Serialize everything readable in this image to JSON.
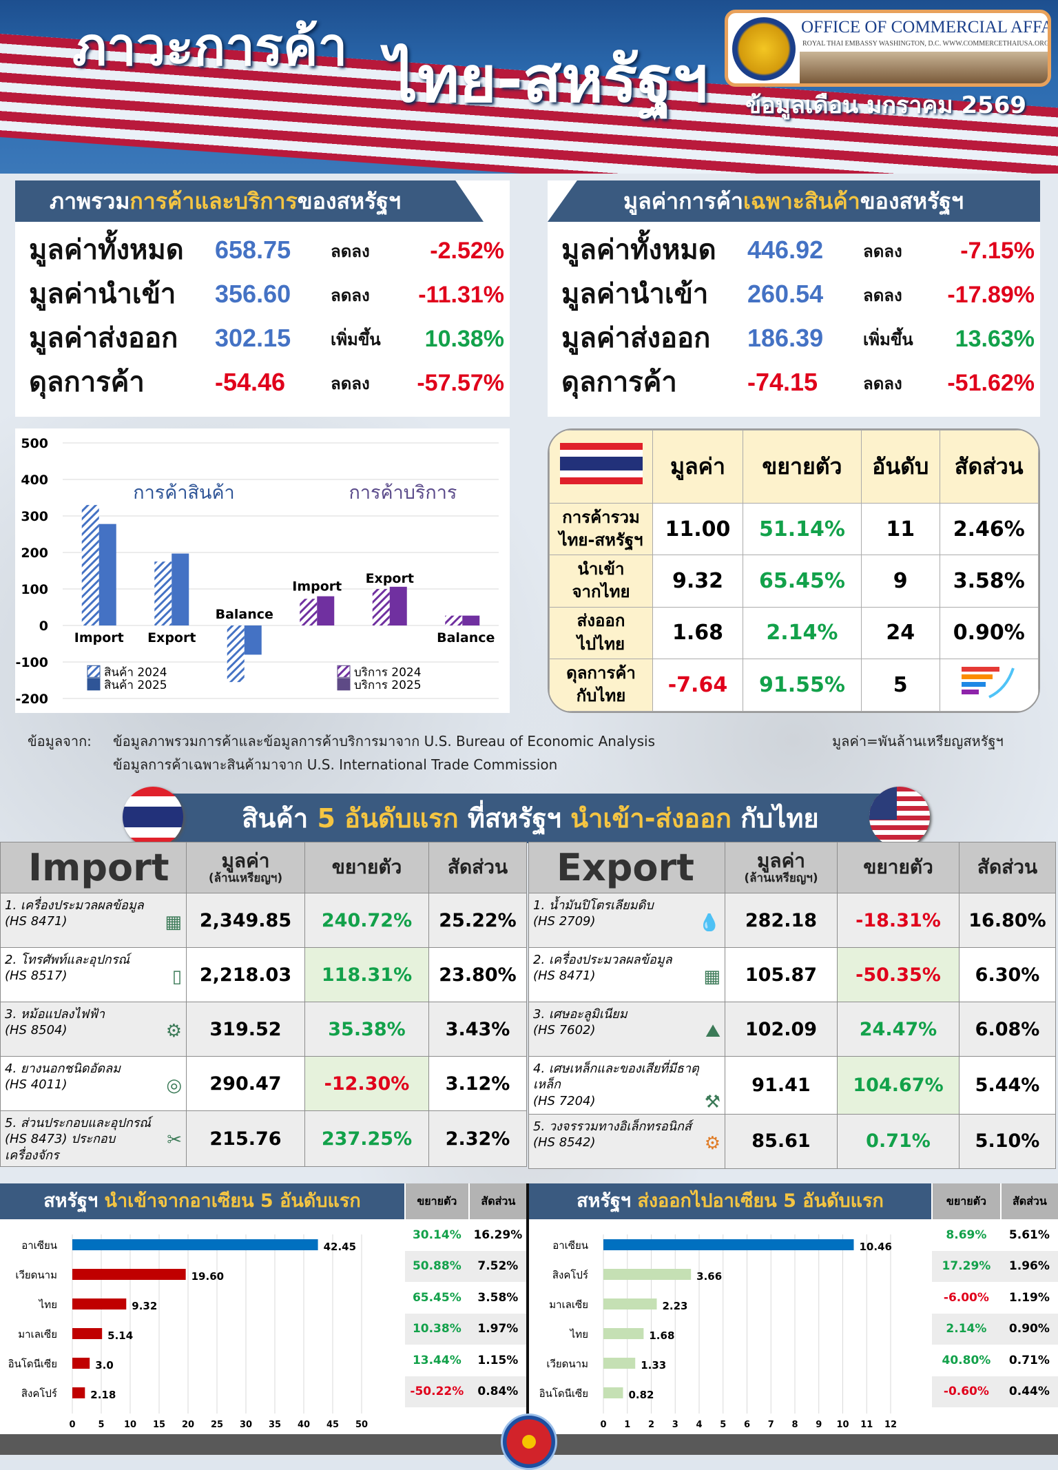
{
  "header": {
    "title_1": "ภาวะการค้า",
    "title_2": "ไทย-สหรัฐฯ",
    "logo_line_1": "OFFICE OF COMMERCIAL AFFAIRS",
    "logo_line_2": "ROYAL THAI EMBASSY WASHINGTON, D.C.   WWW.COMMERCETHAIUSA.ORG",
    "month": "ข้อมูลเดือน มกราคม 2569"
  },
  "overview": {
    "title_pre": "ภาพรวม",
    "title_hl": "การค้าและบริการ",
    "title_post": "ของสหรัฐฯ",
    "rows": [
      {
        "label": "มูลค่าทั้งหมด",
        "value": "658.75",
        "dir": "ลดลง",
        "pct": "-2.52%",
        "trend": "down"
      },
      {
        "label": "มูลค่านำเข้า",
        "value": "356.60",
        "dir": "ลดลง",
        "pct": "-11.31%",
        "trend": "down"
      },
      {
        "label": "มูลค่าส่งออก",
        "value": "302.15",
        "dir": "เพิ่มขึ้น",
        "pct": "10.38%",
        "trend": "up"
      },
      {
        "label": "ดุลการค้า",
        "value": "-54.46",
        "dir": "ลดลง",
        "pct": "-57.57%",
        "trend": "down"
      }
    ]
  },
  "goods": {
    "title_pre": "มูลค่าการค้า",
    "title_hl": "เฉพาะสินค้า",
    "title_post": "ของสหรัฐฯ",
    "rows": [
      {
        "label": "มูลค่าทั้งหมด",
        "value": "446.92",
        "dir": "ลดลง",
        "pct": "-7.15%",
        "trend": "down"
      },
      {
        "label": "มูลค่านำเข้า",
        "value": "260.54",
        "dir": "ลดลง",
        "pct": "-17.89%",
        "trend": "down"
      },
      {
        "label": "มูลค่าส่งออก",
        "value": "186.39",
        "dir": "เพิ่มขึ้น",
        "pct": "13.63%",
        "trend": "up"
      },
      {
        "label": "ดุลการค้า",
        "value": "-74.15",
        "dir": "ลดลง",
        "pct": "-51.62%",
        "trend": "down"
      }
    ]
  },
  "chart_data": [
    {
      "type": "bar",
      "ylim": [
        -200,
        500
      ],
      "yticks": [
        500,
        400,
        300,
        200,
        100,
        0,
        -100,
        -200
      ],
      "grid": true,
      "group_labels": [
        "การค้าสินค้า",
        "การค้าบริการ"
      ],
      "categories": [
        "Import",
        "Export",
        "Balance",
        "Import",
        "Export",
        "Balance"
      ],
      "series": [
        {
          "name": "สินค้า 2024",
          "group": 0,
          "values": [
            330,
            175,
            -155,
            null,
            null,
            null
          ],
          "color": "#4472c4",
          "pattern": "hatch"
        },
        {
          "name": "สินค้า 2025",
          "group": 0,
          "values": [
            278,
            197,
            -80,
            null,
            null,
            null
          ],
          "color": "#4472c4",
          "pattern": "solid"
        },
        {
          "name": "บริการ 2024",
          "group": 1,
          "values": [
            null,
            null,
            null,
            73,
            100,
            27
          ],
          "color": "#7030a0",
          "pattern": "hatch"
        },
        {
          "name": "บริการ 2025",
          "group": 1,
          "values": [
            null,
            null,
            null,
            80,
            106,
            27
          ],
          "color": "#7030a0",
          "pattern": "solid"
        }
      ],
      "legend": "bottom"
    },
    {
      "type": "bar",
      "orientation": "horizontal",
      "title_pre": "สหรัฐฯ ",
      "title_hl": "นำเข้าจากอาเซียน 5 อันดับแรก",
      "categories": [
        "อาเซียน",
        "เวียดนาม",
        "ไทย",
        "มาเลเซีย",
        "อินโดนีเซีย",
        "สิงคโปร์"
      ],
      "values": [
        42.45,
        19.6,
        9.32,
        5.14,
        3.0,
        2.18
      ],
      "labels": [
        "42.45",
        "19.60",
        "9.32",
        "5.14",
        "3.0",
        "2.18"
      ],
      "xlim": [
        0,
        50
      ],
      "xticks": [
        0,
        5,
        10,
        15,
        20,
        25,
        30,
        35,
        40,
        45,
        50
      ],
      "colors": [
        "#0070c0",
        "#c00000",
        "#c00000",
        "#c00000",
        "#c00000",
        "#c00000"
      ],
      "table_headers": [
        "ขยายตัว",
        "สัดส่วน"
      ],
      "growth": [
        "30.14%",
        "50.88%",
        "65.45%",
        "10.38%",
        "13.44%",
        "-50.22%"
      ],
      "share": [
        "16.29%",
        "7.52%",
        "3.58%",
        "1.97%",
        "1.15%",
        "0.84%"
      ]
    },
    {
      "type": "bar",
      "orientation": "horizontal",
      "title_pre": "สหรัฐฯ ",
      "title_hl": "ส่งออกไปอาเซียน 5 อันดับแรก",
      "categories": [
        "อาเซียน",
        "สิงคโปร์",
        "มาเลเซีย",
        "ไทย",
        "เวียดนาม",
        "อินโดนีเซีย"
      ],
      "values": [
        10.46,
        3.66,
        2.23,
        1.68,
        1.33,
        0.82
      ],
      "labels": [
        "10.46",
        "3.66",
        "2.23",
        "1.68",
        "1.33",
        "0.82"
      ],
      "xlim": [
        0,
        12
      ],
      "xticks": [
        0,
        1,
        2,
        3,
        4,
        5,
        6,
        7,
        8,
        9,
        10,
        11,
        12
      ],
      "colors": [
        "#0070c0",
        "#c5e0b4",
        "#c5e0b4",
        "#c5e0b4",
        "#c5e0b4",
        "#c5e0b4"
      ],
      "table_headers": [
        "ขยายตัว",
        "สัดส่วน"
      ],
      "growth": [
        "8.69%",
        "17.29%",
        "-6.00%",
        "2.14%",
        "40.80%",
        "-0.60%"
      ],
      "share": [
        "5.61%",
        "1.96%",
        "1.19%",
        "0.90%",
        "0.71%",
        "0.44%"
      ]
    }
  ],
  "thai_table": {
    "headers": [
      "มูลค่า",
      "ขยายตัว",
      "อันดับ",
      "สัดส่วน"
    ],
    "rows": [
      {
        "label": [
          "การค้ารวม",
          "ไทย-สหรัฐฯ"
        ],
        "value": "11.00",
        "growth": "51.14%",
        "rank": "11",
        "share": "2.46%"
      },
      {
        "label": [
          "นำเข้า",
          "จากไทย"
        ],
        "value": "9.32",
        "growth": "65.45%",
        "rank": "9",
        "share": "3.58%"
      },
      {
        "label": [
          "ส่งออก",
          "ไปไทย"
        ],
        "value": "1.68",
        "growth": "2.14%",
        "rank": "24",
        "share": "0.90%"
      },
      {
        "label": [
          "ดุลการค้า",
          "กับไทย"
        ],
        "value": "-7.64",
        "growth": "91.55%",
        "rank": "5",
        "share": ""
      }
    ]
  },
  "sources": {
    "label": "ข้อมูลจาก:",
    "line_1": "ข้อมูลภาพรวมการค้าและข้อมูลการค้าบริการมาจาก U.S. Bureau of Economic Analysis",
    "line_2": "ข้อมูลการค้าเฉพาะสินค้ามาจาก U.S. International Trade Commission",
    "unit": "มูลค่า=พันล้านเหรียญสหรัฐฯ"
  },
  "top5": {
    "banner": {
      "a": "สินค้า ",
      "b": "5 อันดับแรก",
      "c": " ที่สหรัฐฯ ",
      "d": "นำเข้า-ส่งออก",
      "e": " กับไทย"
    },
    "value_header": "มูลค่า",
    "value_unit": "(ล้านเหรียญฯ)",
    "growth_header": "ขยายตัว",
    "share_header": "สัดส่วน",
    "import": {
      "title": "Import",
      "rows": [
        {
          "name": "1. เครื่องประมวลผลข้อมูล",
          "hs": "(HS 8471)",
          "icon": "circuit-board-icon",
          "value": "2,349.85",
          "growth": "240.72%",
          "share": "25.22%"
        },
        {
          "name": "2. โทรศัพท์และอุปกรณ์",
          "hs": "(HS 8517)",
          "icon": "smartphone-icon",
          "value": "2,218.03",
          "growth": "118.31%",
          "share": "23.80%"
        },
        {
          "name": "3. หม้อแปลงไฟฟ้า",
          "hs": "(HS 8504)",
          "icon": "transformer-icon",
          "value": "319.52",
          "growth": "35.38%",
          "share": "3.43%"
        },
        {
          "name": "4. ยางนอกชนิดอัดลม",
          "hs": "(HS 4011)",
          "icon": "tire-icon",
          "value": "290.47",
          "growth": "-12.30%",
          "share": "3.12%"
        },
        {
          "name": "5. ส่วนประกอบและอุปกรณ์",
          "hs": "(HS 8473) ประกอบเครื่องจักร",
          "icon": "tools-icon",
          "value": "215.76",
          "growth": "237.25%",
          "share": "2.32%"
        }
      ]
    },
    "export": {
      "title": "Export",
      "rows": [
        {
          "name": "1. น้ำมันปิโตรเลียมดิบ",
          "hs": "(HS 2709)",
          "icon": "oil-drops-icon",
          "value": "282.18",
          "growth": "-18.31%",
          "share": "16.80%"
        },
        {
          "name": "2. เครื่องประมวลผลข้อมูล",
          "hs": "(HS 8471)",
          "icon": "circuit-board-icon",
          "value": "105.87",
          "growth": "-50.35%",
          "share": "6.30%"
        },
        {
          "name": "3. เศษอะลูมิเนียม",
          "hs": "(HS 7602)",
          "icon": "scrap-metal-icon",
          "value": "102.09",
          "growth": "24.47%",
          "share": "6.08%"
        },
        {
          "name": "4. เศษเหล็กและของเสียที่มีธาตุเหล็ก",
          "hs": "(HS 7204)",
          "icon": "scrap-iron-icon",
          "value": "91.41",
          "growth": "104.67%",
          "share": "5.44%"
        },
        {
          "name": "5. วงจรรวมทางอิเล็กทรอนิกส์",
          "hs": "(HS 8542)",
          "icon": "gears-icon",
          "value": "85.61",
          "growth": "0.71%",
          "share": "5.10%"
        }
      ]
    }
  },
  "colors": {
    "navy_tab": "#3a5a80",
    "highlight": "#f5c542",
    "positive": "#12a14a",
    "negative": "#e0001b",
    "value_blue": "#4472c4"
  }
}
